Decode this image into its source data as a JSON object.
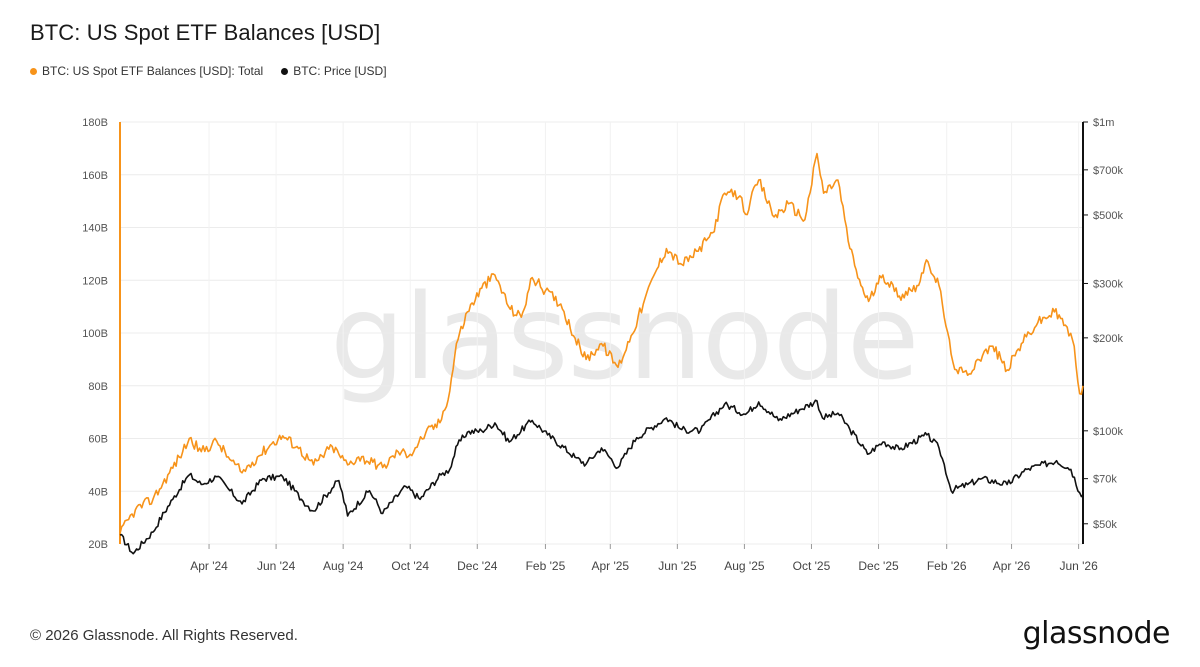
{
  "header": {
    "title": "BTC: US Spot ETF Balances [USD]"
  },
  "legend": {
    "items": [
      {
        "label": "BTC: US Spot ETF Balances [USD]: Total",
        "color": "#f7931a"
      },
      {
        "label": "BTC: Price [USD]",
        "color": "#111111"
      }
    ]
  },
  "watermark": "glassnode",
  "footer": {
    "copyright": "© 2026 Glassnode. All Rights Reserved.",
    "logo": "glassnode"
  },
  "chart_data": {
    "type": "line",
    "x_ticks": [
      "Apr '24",
      "Jun '24",
      "Aug '24",
      "Oct '24",
      "Dec '24",
      "Feb '25",
      "Apr '25",
      "Jun '25",
      "Aug '25",
      "Oct '25",
      "Dec '25",
      "Feb '26",
      "Apr '26",
      "Jun '26"
    ],
    "x_tick_dates": [
      "2024-04-01",
      "2024-06-01",
      "2024-08-01",
      "2024-10-01",
      "2024-12-01",
      "2025-02-01",
      "2025-04-01",
      "2025-06-01",
      "2025-08-01",
      "2025-10-01",
      "2025-12-01",
      "2026-02-01",
      "2026-04-01",
      "2026-06-01"
    ],
    "xlim": [
      "2024-01-11",
      "2026-06-05"
    ],
    "left_axis": {
      "ticks": [
        "20B",
        "40B",
        "60B",
        "80B",
        "100B",
        "120B",
        "140B",
        "160B",
        "180B"
      ],
      "tick_values": [
        20,
        40,
        60,
        80,
        100,
        120,
        140,
        160,
        180
      ],
      "ylim": [
        20,
        180
      ],
      "unit": "B"
    },
    "right_axis": {
      "scale": "log",
      "ticks": [
        "$50k",
        "$70k",
        "$100k",
        "$200k",
        "$300k",
        "$500k",
        "$700k",
        "$1m"
      ],
      "tick_values": [
        50000,
        70000,
        100000,
        200000,
        300000,
        500000,
        700000,
        1000000
      ],
      "ylim": [
        43000,
        1000000
      ]
    },
    "grid": true,
    "series": [
      {
        "name": "BTC: US Spot ETF Balances [USD]: Total",
        "axis": "left",
        "color": "#f7931a",
        "points": [
          [
            "2024-01-11",
            24
          ],
          [
            "2024-01-25",
            33
          ],
          [
            "2024-02-10",
            37
          ],
          [
            "2024-02-25",
            47
          ],
          [
            "2024-03-08",
            55
          ],
          [
            "2024-03-14",
            60
          ],
          [
            "2024-03-25",
            55
          ],
          [
            "2024-04-08",
            59
          ],
          [
            "2024-04-20",
            52
          ],
          [
            "2024-05-01",
            47
          ],
          [
            "2024-05-15",
            53
          ],
          [
            "2024-05-28",
            58
          ],
          [
            "2024-06-07",
            61
          ],
          [
            "2024-06-20",
            57
          ],
          [
            "2024-07-05",
            50
          ],
          [
            "2024-07-22",
            57
          ],
          [
            "2024-08-05",
            50
          ],
          [
            "2024-08-15",
            53
          ],
          [
            "2024-08-28",
            51
          ],
          [
            "2024-09-06",
            49
          ],
          [
            "2024-09-20",
            55
          ],
          [
            "2024-10-01",
            54
          ],
          [
            "2024-10-15",
            62
          ],
          [
            "2024-10-28",
            66
          ],
          [
            "2024-11-06",
            78
          ],
          [
            "2024-11-12",
            96
          ],
          [
            "2024-11-22",
            108
          ],
          [
            "2024-12-05",
            117
          ],
          [
            "2024-12-17",
            122
          ],
          [
            "2024-12-31",
            109
          ],
          [
            "2025-01-10",
            106
          ],
          [
            "2025-01-20",
            121
          ],
          [
            "2025-02-01",
            116
          ],
          [
            "2025-02-15",
            111
          ],
          [
            "2025-02-28",
            98
          ],
          [
            "2025-03-10",
            90
          ],
          [
            "2025-03-24",
            96
          ],
          [
            "2025-04-08",
            87
          ],
          [
            "2025-04-20",
            99
          ],
          [
            "2025-05-01",
            111
          ],
          [
            "2025-05-12",
            123
          ],
          [
            "2025-05-22",
            132
          ],
          [
            "2025-06-05",
            126
          ],
          [
            "2025-06-20",
            131
          ],
          [
            "2025-07-03",
            138
          ],
          [
            "2025-07-14",
            153
          ],
          [
            "2025-07-28",
            152
          ],
          [
            "2025-08-02",
            145
          ],
          [
            "2025-08-14",
            158
          ],
          [
            "2025-08-28",
            144
          ],
          [
            "2025-09-10",
            149
          ],
          [
            "2025-09-25",
            143
          ],
          [
            "2025-10-06",
            168
          ],
          [
            "2025-10-12",
            153
          ],
          [
            "2025-10-25",
            158
          ],
          [
            "2025-11-05",
            132
          ],
          [
            "2025-11-15",
            118
          ],
          [
            "2025-11-22",
            112
          ],
          [
            "2025-12-05",
            122
          ],
          [
            "2025-12-20",
            114
          ],
          [
            "2026-01-05",
            118
          ],
          [
            "2026-01-15",
            127
          ],
          [
            "2026-01-25",
            118
          ],
          [
            "2026-02-05",
            92
          ],
          [
            "2026-02-10",
            86
          ],
          [
            "2026-02-20",
            84
          ],
          [
            "2026-03-01",
            90
          ],
          [
            "2026-03-15",
            95
          ],
          [
            "2026-03-28",
            86
          ],
          [
            "2026-04-10",
            96
          ],
          [
            "2026-04-25",
            104
          ],
          [
            "2026-05-10",
            108
          ],
          [
            "2026-05-20",
            103
          ],
          [
            "2026-05-28",
            95
          ],
          [
            "2026-06-02",
            77
          ],
          [
            "2026-06-05",
            80
          ]
        ]
      },
      {
        "name": "BTC: Price [USD]",
        "axis": "right",
        "color": "#111111",
        "points": [
          [
            "2024-01-11",
            46000
          ],
          [
            "2024-01-23",
            40000
          ],
          [
            "2024-02-10",
            47000
          ],
          [
            "2024-02-28",
            60000
          ],
          [
            "2024-03-14",
            72000
          ],
          [
            "2024-03-25",
            67000
          ],
          [
            "2024-04-08",
            71000
          ],
          [
            "2024-04-20",
            64000
          ],
          [
            "2024-05-01",
            58000
          ],
          [
            "2024-05-20",
            70000
          ],
          [
            "2024-06-07",
            71000
          ],
          [
            "2024-06-24",
            60000
          ],
          [
            "2024-07-05",
            55000
          ],
          [
            "2024-07-28",
            69000
          ],
          [
            "2024-08-05",
            53000
          ],
          [
            "2024-08-25",
            64000
          ],
          [
            "2024-09-06",
            54000
          ],
          [
            "2024-09-27",
            66000
          ],
          [
            "2024-10-10",
            60000
          ],
          [
            "2024-10-29",
            72000
          ],
          [
            "2024-11-06",
            75000
          ],
          [
            "2024-11-13",
            90000
          ],
          [
            "2024-11-22",
            99000
          ],
          [
            "2024-12-05",
            100000
          ],
          [
            "2024-12-17",
            106000
          ],
          [
            "2024-12-30",
            92000
          ],
          [
            "2025-01-20",
            108000
          ],
          [
            "2025-02-03",
            97000
          ],
          [
            "2025-02-28",
            82000
          ],
          [
            "2025-03-10",
            78000
          ],
          [
            "2025-03-24",
            88000
          ],
          [
            "2025-04-08",
            76000
          ],
          [
            "2025-04-25",
            95000
          ],
          [
            "2025-05-22",
            110000
          ],
          [
            "2025-06-05",
            101000
          ],
          [
            "2025-06-22",
            100000
          ],
          [
            "2025-07-14",
            122000
          ],
          [
            "2025-08-02",
            113000
          ],
          [
            "2025-08-14",
            124000
          ],
          [
            "2025-09-01",
            108000
          ],
          [
            "2025-09-20",
            117000
          ],
          [
            "2025-10-06",
            125000
          ],
          [
            "2025-10-11",
            110000
          ],
          [
            "2025-10-25",
            114000
          ],
          [
            "2025-11-05",
            101000
          ],
          [
            "2025-11-21",
            84000
          ],
          [
            "2025-12-05",
            92000
          ],
          [
            "2025-12-20",
            87000
          ],
          [
            "2026-01-14",
            97000
          ],
          [
            "2026-01-25",
            88000
          ],
          [
            "2026-02-05",
            64000
          ],
          [
            "2026-02-20",
            67000
          ],
          [
            "2026-03-05",
            70000
          ],
          [
            "2026-03-28",
            67000
          ],
          [
            "2026-04-15",
            75000
          ],
          [
            "2026-05-12",
            80000
          ],
          [
            "2026-05-25",
            75000
          ],
          [
            "2026-06-02",
            63000
          ],
          [
            "2026-06-05",
            62000
          ]
        ]
      }
    ]
  }
}
